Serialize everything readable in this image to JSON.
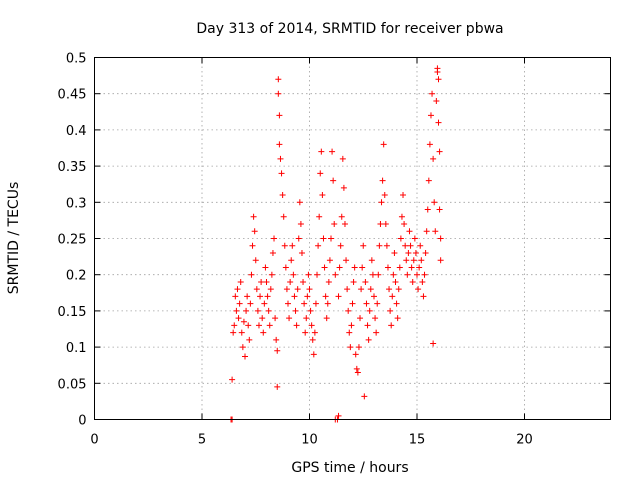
{
  "chart_data": {
    "type": "scatter",
    "title": "Day 313 of 2014, SRMTID for receiver pbwa",
    "xlabel": "GPS time / hours",
    "ylabel": "SRMTID / TECUs",
    "xlim": [
      0,
      24
    ],
    "ylim": [
      0,
      0.5
    ],
    "x_ticks": [
      0,
      5,
      10,
      15,
      20
    ],
    "x_tick_labels": [
      "0",
      "5",
      "10",
      "15",
      "20"
    ],
    "y_ticks": [
      0,
      0.05,
      0.1,
      0.15,
      0.2,
      0.25,
      0.3,
      0.35,
      0.4,
      0.45,
      0.5
    ],
    "y_tick_labels": [
      "0",
      "0.05",
      "0.1",
      "0.15",
      "0.2",
      "0.25",
      "0.3",
      "0.35",
      "0.4",
      "0.45",
      "0.5"
    ],
    "grid": true,
    "marker": "+",
    "color": "#ff0000",
    "series": [
      {
        "name": "SRMTID",
        "points": [
          [
            6.35,
            0.0
          ],
          [
            6.4,
            0.0
          ],
          [
            6.4,
            0.055
          ],
          [
            6.45,
            0.12
          ],
          [
            6.5,
            0.13
          ],
          [
            6.55,
            0.17
          ],
          [
            6.6,
            0.15
          ],
          [
            6.65,
            0.18
          ],
          [
            6.7,
            0.14
          ],
          [
            6.75,
            0.16
          ],
          [
            6.8,
            0.19
          ],
          [
            6.85,
            0.12
          ],
          [
            6.9,
            0.1
          ],
          [
            6.95,
            0.135
          ],
          [
            7.0,
            0.087
          ],
          [
            7.05,
            0.15
          ],
          [
            7.1,
            0.17
          ],
          [
            7.15,
            0.13
          ],
          [
            7.2,
            0.11
          ],
          [
            7.25,
            0.16
          ],
          [
            7.3,
            0.2
          ],
          [
            7.35,
            0.24
          ],
          [
            7.4,
            0.28
          ],
          [
            7.45,
            0.26
          ],
          [
            7.5,
            0.22
          ],
          [
            7.55,
            0.18
          ],
          [
            7.6,
            0.15
          ],
          [
            7.65,
            0.13
          ],
          [
            7.7,
            0.17
          ],
          [
            7.75,
            0.19
          ],
          [
            7.8,
            0.14
          ],
          [
            7.85,
            0.12
          ],
          [
            7.9,
            0.16
          ],
          [
            7.95,
            0.21
          ],
          [
            8.0,
            0.19
          ],
          [
            8.05,
            0.17
          ],
          [
            8.1,
            0.15
          ],
          [
            8.15,
            0.13
          ],
          [
            8.2,
            0.18
          ],
          [
            8.25,
            0.2
          ],
          [
            8.3,
            0.23
          ],
          [
            8.35,
            0.25
          ],
          [
            8.4,
            0.14
          ],
          [
            8.45,
            0.11
          ],
          [
            8.5,
            0.095
          ],
          [
            8.5,
            0.045
          ],
          [
            8.55,
            0.47
          ],
          [
            8.55,
            0.45
          ],
          [
            8.6,
            0.42
          ],
          [
            8.6,
            0.38
          ],
          [
            8.65,
            0.36
          ],
          [
            8.7,
            0.34
          ],
          [
            8.75,
            0.31
          ],
          [
            8.8,
            0.28
          ],
          [
            8.85,
            0.24
          ],
          [
            8.9,
            0.21
          ],
          [
            8.95,
            0.18
          ],
          [
            9.0,
            0.16
          ],
          [
            9.05,
            0.14
          ],
          [
            9.1,
            0.19
          ],
          [
            9.15,
            0.22
          ],
          [
            9.2,
            0.24
          ],
          [
            9.25,
            0.2
          ],
          [
            9.3,
            0.17
          ],
          [
            9.35,
            0.15
          ],
          [
            9.4,
            0.13
          ],
          [
            9.45,
            0.18
          ],
          [
            9.5,
            0.25
          ],
          [
            9.55,
            0.3
          ],
          [
            9.6,
            0.27
          ],
          [
            9.65,
            0.23
          ],
          [
            9.7,
            0.19
          ],
          [
            9.75,
            0.16
          ],
          [
            9.8,
            0.12
          ],
          [
            9.85,
            0.14
          ],
          [
            9.9,
            0.17
          ],
          [
            9.95,
            0.2
          ],
          [
            10.0,
            0.18
          ],
          [
            10.05,
            0.15
          ],
          [
            10.1,
            0.13
          ],
          [
            10.15,
            0.11
          ],
          [
            10.2,
            0.09
          ],
          [
            10.25,
            0.12
          ],
          [
            10.3,
            0.16
          ],
          [
            10.35,
            0.2
          ],
          [
            10.4,
            0.24
          ],
          [
            10.45,
            0.28
          ],
          [
            10.5,
            0.34
          ],
          [
            10.55,
            0.37
          ],
          [
            10.6,
            0.31
          ],
          [
            10.65,
            0.25
          ],
          [
            10.7,
            0.21
          ],
          [
            10.75,
            0.17
          ],
          [
            10.8,
            0.14
          ],
          [
            10.85,
            0.16
          ],
          [
            10.9,
            0.19
          ],
          [
            10.95,
            0.22
          ],
          [
            11.0,
            0.25
          ],
          [
            11.05,
            0.37
          ],
          [
            11.1,
            0.33
          ],
          [
            11.15,
            0.27
          ],
          [
            11.2,
            0.2
          ],
          [
            11.2,
            0.0
          ],
          [
            11.3,
            0.0
          ],
          [
            11.35,
            0.005
          ],
          [
            11.35,
            0.17
          ],
          [
            11.4,
            0.21
          ],
          [
            11.45,
            0.24
          ],
          [
            11.5,
            0.28
          ],
          [
            11.55,
            0.36
          ],
          [
            11.6,
            0.32
          ],
          [
            11.65,
            0.27
          ],
          [
            11.7,
            0.22
          ],
          [
            11.75,
            0.18
          ],
          [
            11.8,
            0.15
          ],
          [
            11.85,
            0.12
          ],
          [
            11.9,
            0.1
          ],
          [
            11.95,
            0.13
          ],
          [
            12.0,
            0.16
          ],
          [
            12.05,
            0.19
          ],
          [
            12.1,
            0.21
          ],
          [
            12.15,
            0.09
          ],
          [
            12.2,
            0.07
          ],
          [
            12.25,
            0.065
          ],
          [
            12.3,
            0.1
          ],
          [
            12.35,
            0.14
          ],
          [
            12.4,
            0.18
          ],
          [
            12.45,
            0.21
          ],
          [
            12.5,
            0.24
          ],
          [
            12.55,
            0.032
          ],
          [
            12.6,
            0.19
          ],
          [
            12.65,
            0.16
          ],
          [
            12.7,
            0.13
          ],
          [
            12.75,
            0.11
          ],
          [
            12.8,
            0.15
          ],
          [
            12.85,
            0.18
          ],
          [
            12.9,
            0.22
          ],
          [
            12.95,
            0.2
          ],
          [
            13.0,
            0.17
          ],
          [
            13.05,
            0.14
          ],
          [
            13.1,
            0.12
          ],
          [
            13.15,
            0.16
          ],
          [
            13.2,
            0.2
          ],
          [
            13.25,
            0.24
          ],
          [
            13.3,
            0.27
          ],
          [
            13.35,
            0.3
          ],
          [
            13.4,
            0.33
          ],
          [
            13.45,
            0.38
          ],
          [
            13.5,
            0.31
          ],
          [
            13.55,
            0.27
          ],
          [
            13.6,
            0.24
          ],
          [
            13.65,
            0.21
          ],
          [
            13.7,
            0.18
          ],
          [
            13.75,
            0.15
          ],
          [
            13.8,
            0.13
          ],
          [
            13.85,
            0.17
          ],
          [
            13.9,
            0.2
          ],
          [
            13.95,
            0.23
          ],
          [
            14.0,
            0.19
          ],
          [
            14.05,
            0.16
          ],
          [
            14.1,
            0.14
          ],
          [
            14.15,
            0.18
          ],
          [
            14.2,
            0.21
          ],
          [
            14.25,
            0.25
          ],
          [
            14.3,
            0.28
          ],
          [
            14.35,
            0.31
          ],
          [
            14.4,
            0.27
          ],
          [
            14.45,
            0.24
          ],
          [
            14.5,
            0.22
          ],
          [
            14.55,
            0.2
          ],
          [
            14.6,
            0.23
          ],
          [
            14.65,
            0.26
          ],
          [
            14.7,
            0.24
          ],
          [
            14.75,
            0.21
          ],
          [
            14.8,
            0.19
          ],
          [
            14.85,
            0.22
          ],
          [
            14.9,
            0.25
          ],
          [
            14.95,
            0.23
          ],
          [
            15.0,
            0.2
          ],
          [
            15.05,
            0.18
          ],
          [
            15.1,
            0.21
          ],
          [
            15.15,
            0.24
          ],
          [
            15.2,
            0.22
          ],
          [
            15.25,
            0.19
          ],
          [
            15.3,
            0.17
          ],
          [
            15.35,
            0.2
          ],
          [
            15.4,
            0.23
          ],
          [
            15.45,
            0.26
          ],
          [
            15.5,
            0.29
          ],
          [
            15.55,
            0.33
          ],
          [
            15.6,
            0.38
          ],
          [
            15.65,
            0.42
          ],
          [
            15.7,
            0.45
          ],
          [
            15.75,
            0.36
          ],
          [
            15.75,
            0.105
          ],
          [
            15.8,
            0.3
          ],
          [
            15.85,
            0.26
          ],
          [
            15.9,
            0.44
          ],
          [
            15.95,
            0.48
          ],
          [
            15.95,
            0.485
          ],
          [
            16.0,
            0.47
          ],
          [
            16.0,
            0.41
          ],
          [
            16.05,
            0.37
          ],
          [
            16.05,
            0.29
          ],
          [
            16.1,
            0.25
          ],
          [
            16.1,
            0.22
          ]
        ]
      }
    ]
  }
}
